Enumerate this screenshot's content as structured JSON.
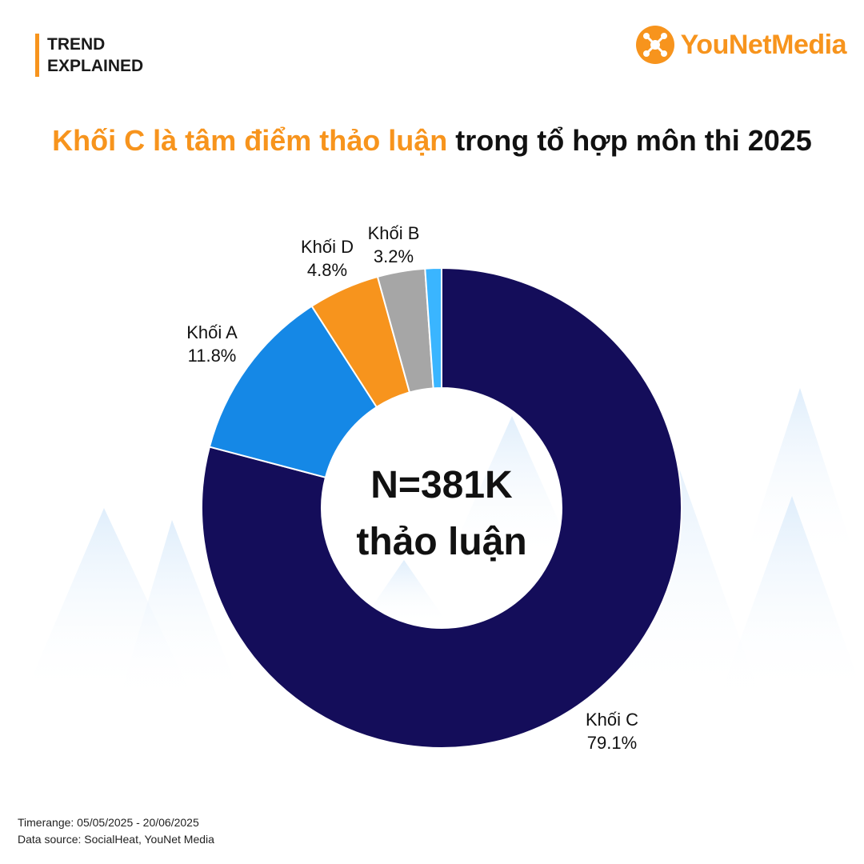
{
  "brand": {
    "line1": "TREND",
    "line2": "EXPLAINED"
  },
  "logo": {
    "you": "You",
    "net": "Net",
    "media": "Media"
  },
  "headline": {
    "highlight": "Khối C là tâm điểm thảo luận",
    "rest": " trong tổ hợp môn thi 2025"
  },
  "colors": {
    "accent": "#f7941d",
    "khoi_c": "#140d5a",
    "khoi_a": "#1588e6",
    "khoi_d": "#f7941d",
    "khoi_b": "#a6a6a6",
    "other": "#3ab5ff"
  },
  "chart_data": {
    "type": "pie",
    "donut": true,
    "start": "top",
    "direction": "clockwise",
    "center_label": [
      "N=381K",
      "thảo luận"
    ],
    "slices": [
      {
        "name": "Khối C",
        "value": 79.1,
        "label": "79.1%",
        "color": "#140d5a"
      },
      {
        "name": "Khối A",
        "value": 11.8,
        "label": "11.8%",
        "color": "#1588e6"
      },
      {
        "name": "Khối D",
        "value": 4.8,
        "label": "4.8%",
        "color": "#f7941d"
      },
      {
        "name": "Khối B",
        "value": 3.2,
        "label": "3.2%",
        "color": "#a6a6a6"
      },
      {
        "name": "",
        "value": 1.1,
        "label": "",
        "color": "#3ab5ff"
      }
    ]
  },
  "footer": {
    "timerange": "Timerange: 05/05/2025 - 20/06/2025",
    "source": "Data source: SocialHeat, YouNet Media"
  }
}
